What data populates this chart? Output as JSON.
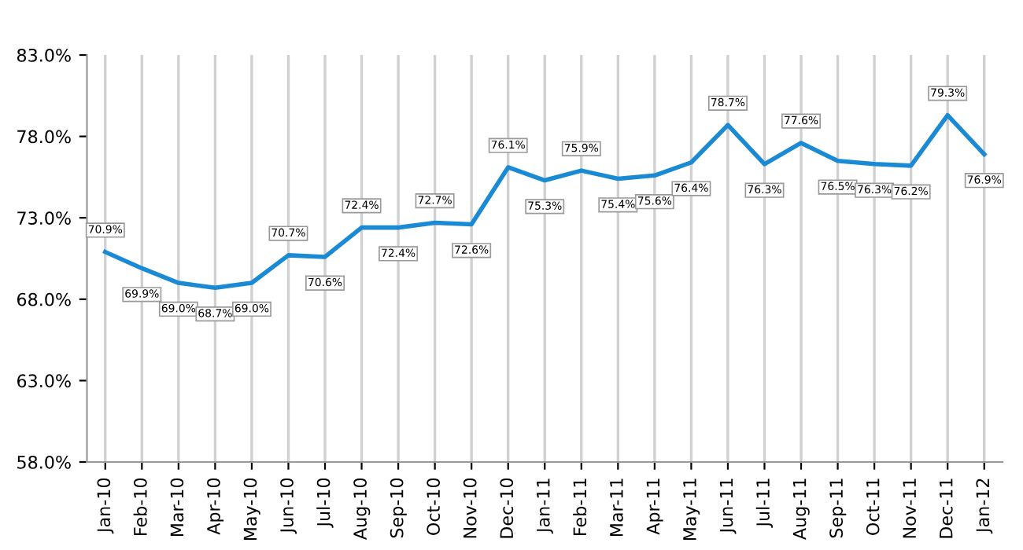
{
  "chart_data": {
    "type": "line",
    "categories": [
      "Jan-10",
      "Feb-10",
      "Mar-10",
      "Apr-10",
      "May-10",
      "Jun-10",
      "Jul-10",
      "Aug-10",
      "Sep-10",
      "Oct-10",
      "Nov-10",
      "Dec-10",
      "Jan-11",
      "Feb-11",
      "Mar-11",
      "Apr-11",
      "May-11",
      "Jun-11",
      "Jul-11",
      "Aug-11",
      "Sep-11",
      "Oct-11",
      "Nov-11",
      "Dec-11",
      "Jan-12"
    ],
    "series": [
      {
        "color": "#1a8ad4",
        "values": [
          70.9,
          69.9,
          69.0,
          68.7,
          69.0,
          70.7,
          70.6,
          72.4,
          72.4,
          72.7,
          72.6,
          76.1,
          75.3,
          75.9,
          75.4,
          75.6,
          76.4,
          78.7,
          76.3,
          77.6,
          76.5,
          76.3,
          76.2,
          79.3,
          76.9
        ],
        "value_labels": [
          "70.9%",
          "69.9%",
          "69.0%",
          "68.7%",
          "69.0%",
          "70.7%",
          "70.6%",
          "72.4%",
          "72.4%",
          "72.7%",
          "72.6%",
          "76.1%",
          "75.3%",
          "75.9%",
          "75.4%",
          "75.6%",
          "76.4%",
          "78.7%",
          "76.3%",
          "77.6%",
          "76.5%",
          "76.3%",
          "76.2%",
          "79.3%",
          "76.9%"
        ]
      }
    ],
    "ylim": [
      58,
      83
    ],
    "yticks": [
      {
        "value": 58,
        "label": "58.0%"
      },
      {
        "value": 63,
        "label": "63.0%"
      },
      {
        "value": 68,
        "label": "68.0%"
      },
      {
        "value": 73,
        "label": "73.0%"
      },
      {
        "value": 78,
        "label": "78.0%"
      },
      {
        "value": 83,
        "label": "83.0%"
      }
    ],
    "grid": "x",
    "legend": false,
    "marker": "none",
    "line_style": "solid"
  }
}
